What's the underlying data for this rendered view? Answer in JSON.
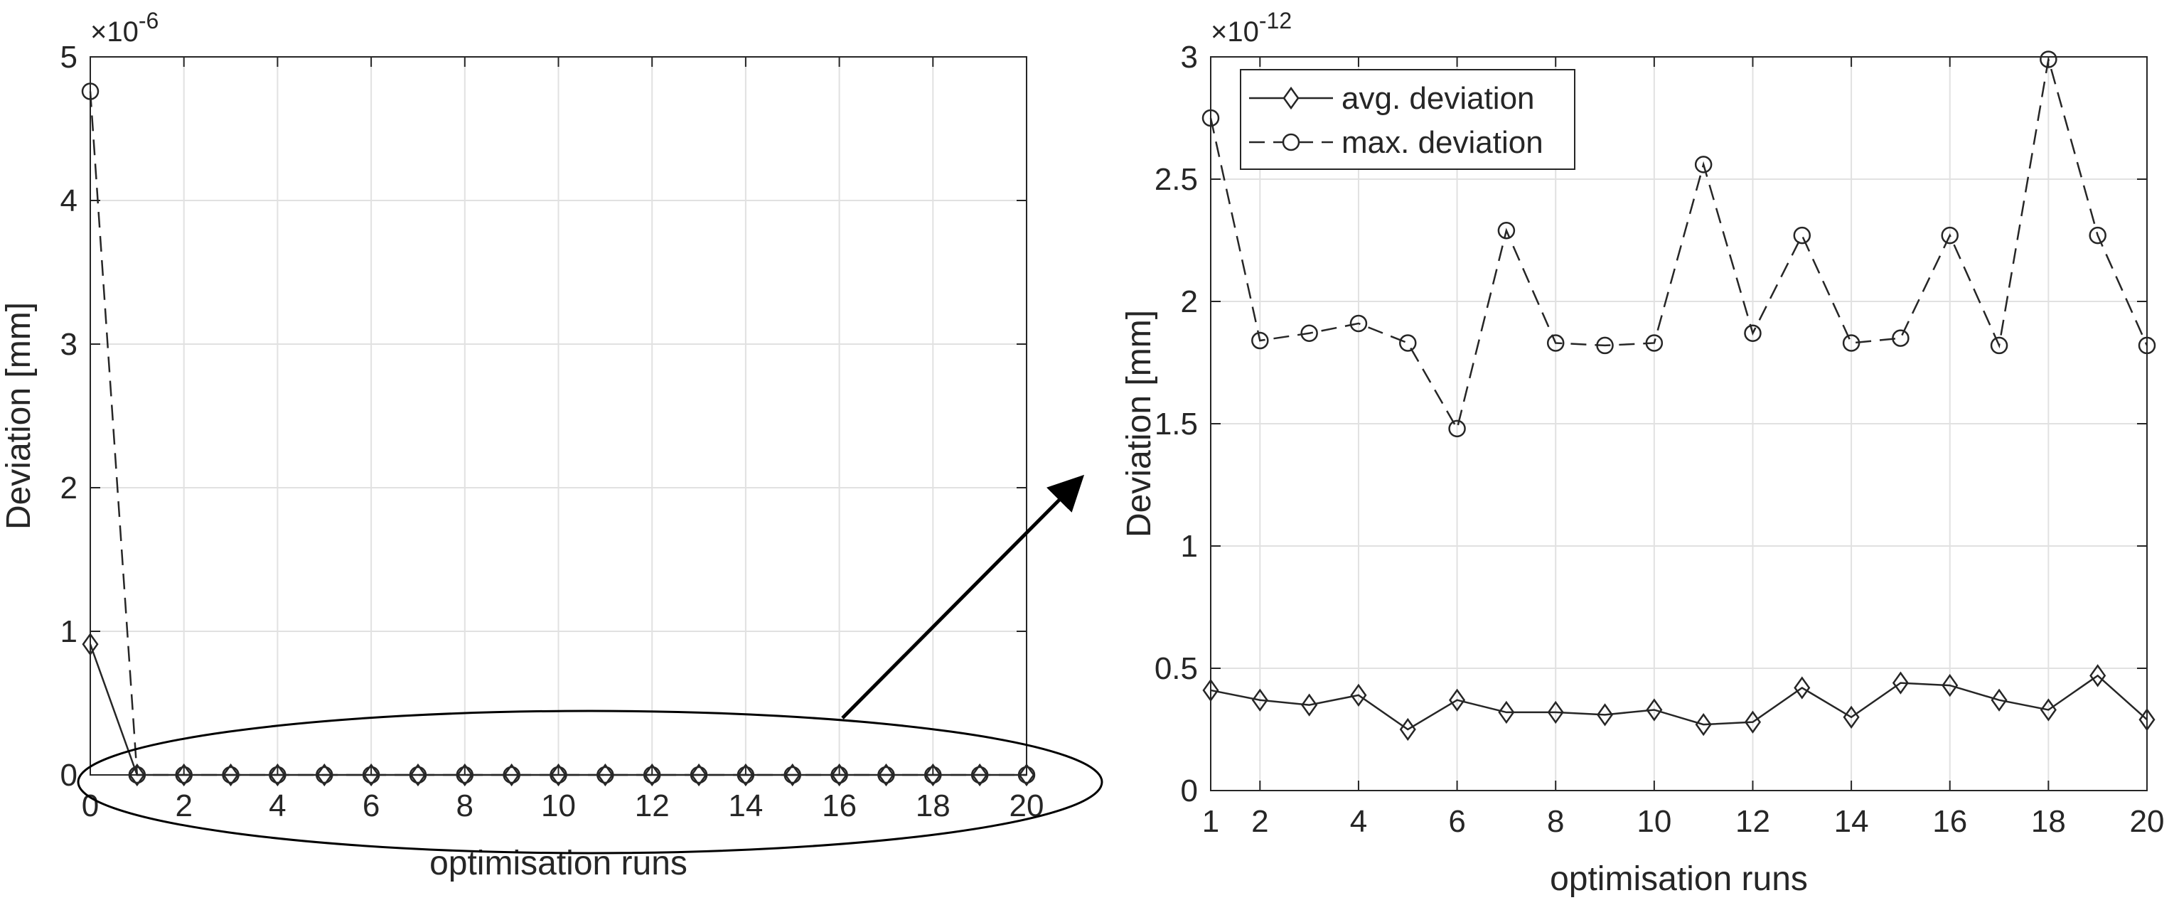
{
  "chart_data": [
    {
      "type": "line",
      "title": "",
      "xlabel": "optimisation runs",
      "ylabel": "Deviation [mm]",
      "y_scale_label": "×10",
      "y_scale_exponent": "-6",
      "xlim": [
        0,
        20
      ],
      "ylim": [
        0,
        5
      ],
      "grid": true,
      "x": [
        0,
        1,
        2,
        3,
        4,
        5,
        6,
        7,
        8,
        9,
        10,
        11,
        12,
        13,
        14,
        15,
        16,
        17,
        18,
        19,
        20
      ],
      "x_ticks": [
        "0",
        "2",
        "4",
        "6",
        "8",
        "10",
        "12",
        "14",
        "16",
        "18",
        "20"
      ],
      "x_tick_values": [
        0,
        2,
        4,
        6,
        8,
        10,
        12,
        14,
        16,
        18,
        20
      ],
      "y_ticks": [
        "0",
        "1",
        "2",
        "3",
        "4",
        "5"
      ],
      "y_tick_values": [
        0,
        1,
        2,
        3,
        4,
        5
      ],
      "series": [
        {
          "name": "avg. deviation",
          "style": "solid",
          "marker": "diamond",
          "values": [
            0.91,
            0,
            0,
            0,
            0,
            0,
            0,
            0,
            0,
            0,
            0,
            0,
            0,
            0,
            0,
            0,
            0,
            0,
            0,
            0,
            0
          ]
        },
        {
          "name": "max. deviation",
          "style": "dashed",
          "marker": "circle",
          "values": [
            4.76,
            0,
            0,
            0,
            0,
            0,
            0,
            0,
            0,
            0,
            0,
            0,
            0,
            0,
            0,
            0,
            0,
            0,
            0,
            0,
            0
          ]
        }
      ],
      "annotation": "ellipse around runs 1–20 with arrow pointing to the zoomed plot"
    },
    {
      "type": "line",
      "title": "",
      "xlabel": "optimisation runs",
      "ylabel": "Deviation [mm]",
      "y_scale_label": "×10",
      "y_scale_exponent": "-12",
      "xlim": [
        1,
        20
      ],
      "ylim": [
        0,
        3
      ],
      "grid": true,
      "legend_position": "top-left",
      "x": [
        1,
        2,
        3,
        4,
        5,
        6,
        7,
        8,
        9,
        10,
        11,
        12,
        13,
        14,
        15,
        16,
        17,
        18,
        19,
        20
      ],
      "x_ticks": [
        "1",
        "2",
        "4",
        "6",
        "8",
        "10",
        "12",
        "14",
        "16",
        "18",
        "20"
      ],
      "x_tick_values": [
        1,
        2,
        4,
        6,
        8,
        10,
        12,
        14,
        16,
        18,
        20
      ],
      "y_ticks": [
        "0",
        "0.5",
        "1",
        "1.5",
        "2",
        "2.5",
        "3"
      ],
      "y_tick_values": [
        0,
        0.5,
        1,
        1.5,
        2,
        2.5,
        3
      ],
      "series": [
        {
          "name": "avg. deviation",
          "style": "solid",
          "marker": "diamond",
          "values": [
            0.41,
            0.37,
            0.35,
            0.39,
            0.25,
            0.37,
            0.32,
            0.32,
            0.31,
            0.33,
            0.27,
            0.28,
            0.42,
            0.3,
            0.44,
            0.43,
            0.37,
            0.33,
            0.47,
            0.29
          ]
        },
        {
          "name": "max. deviation",
          "style": "dashed",
          "marker": "circle",
          "values": [
            2.75,
            1.84,
            1.87,
            1.91,
            1.83,
            1.48,
            2.29,
            1.83,
            1.82,
            1.83,
            2.56,
            1.87,
            2.27,
            1.83,
            1.85,
            2.27,
            1.82,
            2.99,
            2.27,
            1.82
          ]
        }
      ]
    }
  ]
}
